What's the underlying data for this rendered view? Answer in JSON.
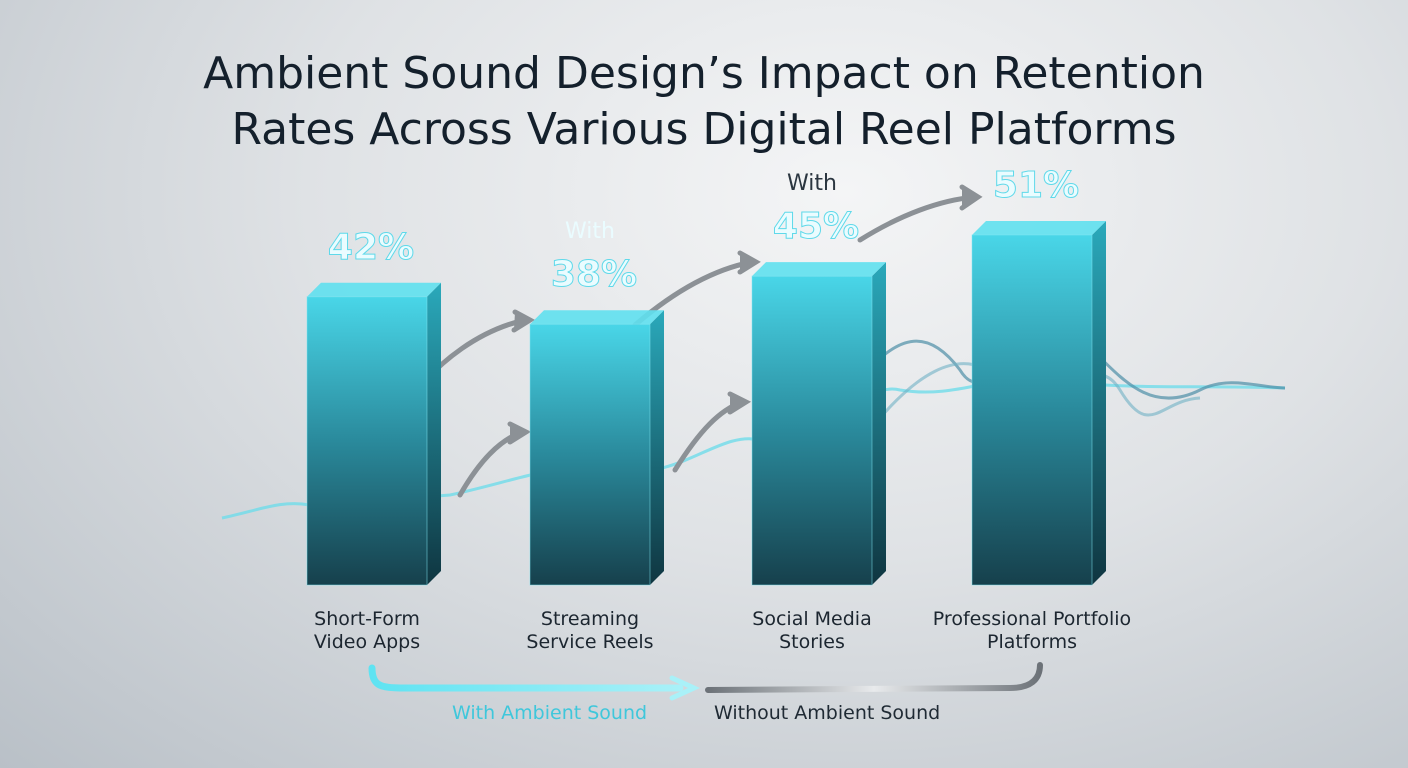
{
  "chart_data": {
    "type": "bar",
    "title": "Ambient Sound Design’s Impact on Retention Rates Across Various Digital Reel Platforms",
    "categories": [
      "Short-Form Video Apps",
      "Streaming Service Reels",
      "Social Media Stories",
      "Professional Portfolio Platforms"
    ],
    "values": [
      42,
      38,
      45,
      51
    ],
    "value_labels": [
      "42%",
      "38%",
      "45%",
      "51%"
    ],
    "color": "#2b8d9e",
    "annotations": [
      "With",
      "With"
    ],
    "legend": [
      "With Ambient Sound",
      "Without Ambient Sound"
    ]
  }
}
